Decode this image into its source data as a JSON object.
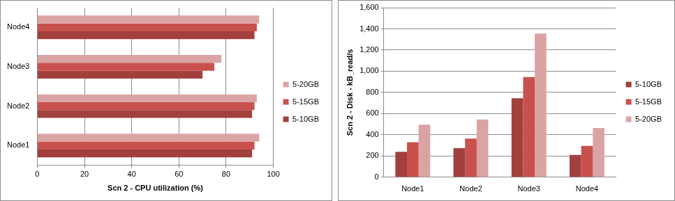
{
  "chart_data": [
    {
      "type": "bar",
      "orientation": "horizontal",
      "categories": [
        "Node1",
        "Node2",
        "Node3",
        "Node4"
      ],
      "series": [
        {
          "name": "5-20GB",
          "color": "#dba4a4",
          "values": [
            94,
            93,
            78,
            94
          ]
        },
        {
          "name": "5-15GB",
          "color": "#c9514d",
          "values": [
            92,
            92,
            75,
            93
          ]
        },
        {
          "name": "5-10GB",
          "color": "#a2403d",
          "values": [
            91,
            91,
            70,
            92
          ]
        }
      ],
      "x_label": "Scn 2 - CPU utilization (%)",
      "xlim": [
        0,
        100
      ],
      "xticks": [
        0,
        20,
        40,
        60,
        80,
        100
      ],
      "grid": true,
      "legend": "right"
    },
    {
      "type": "bar",
      "categories": [
        "Node1",
        "Node2",
        "Node3",
        "Node4"
      ],
      "series": [
        {
          "name": "5-10GB",
          "color": "#a2403d",
          "values": [
            240,
            275,
            745,
            210
          ]
        },
        {
          "name": "5-15GB",
          "color": "#c9514d",
          "values": [
            330,
            365,
            945,
            295
          ]
        },
        {
          "name": "5-20GB",
          "color": "#dba4a4",
          "values": [
            495,
            545,
            1355,
            465
          ]
        }
      ],
      "y_label": "Scn 2 - Disk - kB_read/s",
      "ylim": [
        0,
        1600
      ],
      "yticks": [
        0,
        200,
        400,
        600,
        800,
        1000,
        1200,
        1400,
        1600
      ],
      "grid": true,
      "legend": "right"
    }
  ]
}
